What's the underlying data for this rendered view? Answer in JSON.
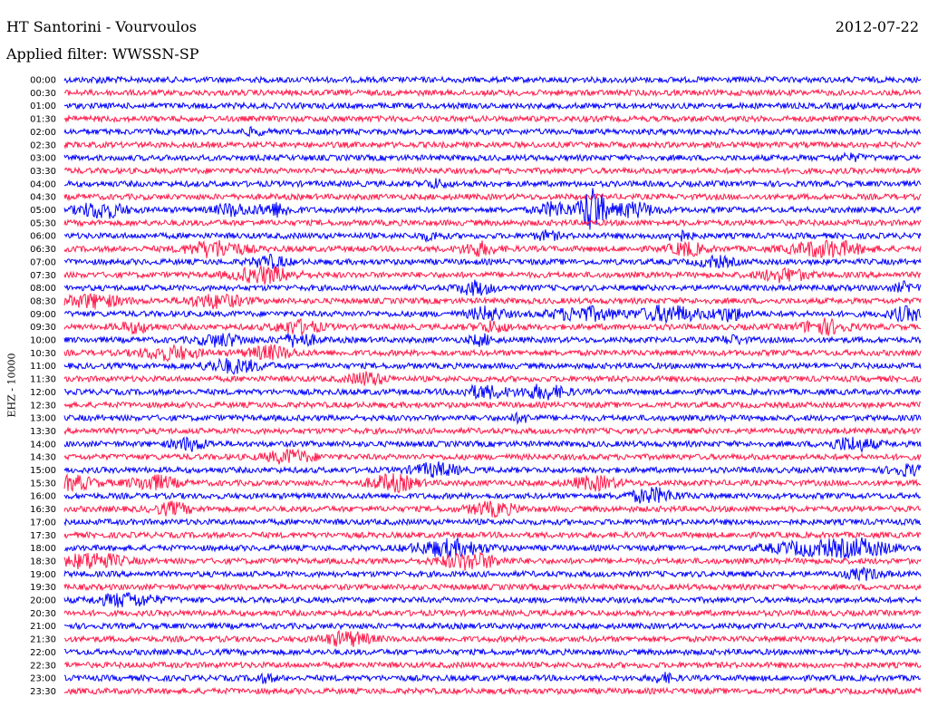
{
  "header": {
    "station": "HT Santorini - Vourvoulos",
    "date": "2012-07-22",
    "filter": "Applied filter: WWSSN-SP",
    "channel_label": "EHZ - 10000"
  },
  "colors": {
    "even_row": "#0000ff",
    "odd_row": "#ff1a4a"
  },
  "chart_data": {
    "type": "line",
    "title": "HT Santorini - Vourvoulos",
    "ylabel": "EHZ - 10000",
    "rows": [
      "00:00",
      "00:30",
      "01:00",
      "01:30",
      "02:00",
      "02:30",
      "03:00",
      "03:30",
      "04:00",
      "04:30",
      "05:00",
      "05:30",
      "06:00",
      "06:30",
      "07:00",
      "07:30",
      "08:00",
      "08:30",
      "09:00",
      "09:30",
      "10:00",
      "10:30",
      "11:00",
      "11:30",
      "12:00",
      "12:30",
      "13:00",
      "13:30",
      "14:00",
      "14:30",
      "15:00",
      "15:30",
      "16:00",
      "16:30",
      "17:00",
      "17:30",
      "18:00",
      "18:30",
      "19:00",
      "19:30",
      "20:00",
      "20:30",
      "21:00",
      "21:30",
      "22:00",
      "22:30",
      "23:00",
      "23:30"
    ],
    "row_duration_min": 30,
    "events": [
      {
        "row": 0,
        "minute": 1.3,
        "amp": 0.5,
        "width": 0.4
      },
      {
        "row": 2,
        "minute": 27.5,
        "amp": 0.5,
        "width": 0.4
      },
      {
        "row": 4,
        "minute": 6.6,
        "amp": 0.8,
        "width": 0.4
      },
      {
        "row": 6,
        "minute": 27.5,
        "amp": 0.8,
        "width": 0.5
      },
      {
        "row": 8,
        "minute": 13,
        "amp": 1.2,
        "width": 0.4
      },
      {
        "row": 10,
        "minute": 1.3,
        "amp": 2.5,
        "width": 0.8
      },
      {
        "row": 10,
        "minute": 5.9,
        "amp": 1.8,
        "width": 0.6
      },
      {
        "row": 10,
        "minute": 7.4,
        "amp": 2.0,
        "width": 0.6
      },
      {
        "row": 10,
        "minute": 17.2,
        "amp": 2.2,
        "width": 0.6
      },
      {
        "row": 10,
        "minute": 19.9,
        "amp": 2.2,
        "width": 0.8
      },
      {
        "row": 10,
        "minute": 18.5,
        "amp": 8.0,
        "width": 0.4
      },
      {
        "row": 12,
        "minute": 12.8,
        "amp": 1.0,
        "width": 0.4
      },
      {
        "row": 12,
        "minute": 16.9,
        "amp": 1.2,
        "width": 0.4
      },
      {
        "row": 12,
        "minute": 21.5,
        "amp": 1.5,
        "width": 0.4
      },
      {
        "row": 13,
        "minute": 5.3,
        "amp": 2.5,
        "width": 1.0
      },
      {
        "row": 13,
        "minute": 14.5,
        "amp": 2.0,
        "width": 0.6
      },
      {
        "row": 13,
        "minute": 21.8,
        "amp": 2.0,
        "width": 0.6
      },
      {
        "row": 13,
        "minute": 26.7,
        "amp": 2.5,
        "width": 1.2
      },
      {
        "row": 14,
        "minute": 7.2,
        "amp": 1.8,
        "width": 0.6
      },
      {
        "row": 14,
        "minute": 22.8,
        "amp": 1.5,
        "width": 0.6
      },
      {
        "row": 15,
        "minute": 7.0,
        "amp": 2.5,
        "width": 1.0
      },
      {
        "row": 15,
        "minute": 25.2,
        "amp": 2.0,
        "width": 0.8
      },
      {
        "row": 16,
        "minute": 14.4,
        "amp": 2.0,
        "width": 0.6
      },
      {
        "row": 16,
        "minute": 29.5,
        "amp": 1.5,
        "width": 0.4
      },
      {
        "row": 17,
        "minute": 1.0,
        "amp": 2.0,
        "width": 1.0
      },
      {
        "row": 17,
        "minute": 5.3,
        "amp": 2.0,
        "width": 1.0
      },
      {
        "row": 18,
        "minute": 14.8,
        "amp": 2.0,
        "width": 0.6
      },
      {
        "row": 18,
        "minute": 18.2,
        "amp": 2.0,
        "width": 1.2
      },
      {
        "row": 18,
        "minute": 21.2,
        "amp": 2.5,
        "width": 1.0
      },
      {
        "row": 18,
        "minute": 23.3,
        "amp": 2.0,
        "width": 0.6
      },
      {
        "row": 18,
        "minute": 29.5,
        "amp": 2.0,
        "width": 0.6
      },
      {
        "row": 19,
        "minute": 2.5,
        "amp": 1.5,
        "width": 0.6
      },
      {
        "row": 19,
        "minute": 8.2,
        "amp": 2.0,
        "width": 0.8
      },
      {
        "row": 19,
        "minute": 15.0,
        "amp": 1.5,
        "width": 0.6
      },
      {
        "row": 19,
        "minute": 26.6,
        "amp": 2.2,
        "width": 0.8
      },
      {
        "row": 20,
        "minute": 5.5,
        "amp": 1.8,
        "width": 0.8
      },
      {
        "row": 20,
        "minute": 8.2,
        "amp": 2.0,
        "width": 0.6
      },
      {
        "row": 20,
        "minute": 14.6,
        "amp": 1.5,
        "width": 0.4
      },
      {
        "row": 20,
        "minute": 23.4,
        "amp": 1.2,
        "width": 0.4
      },
      {
        "row": 21,
        "minute": 3.7,
        "amp": 2.0,
        "width": 1.0
      },
      {
        "row": 21,
        "minute": 7.2,
        "amp": 2.0,
        "width": 0.8
      },
      {
        "row": 22,
        "minute": 5.9,
        "amp": 2.0,
        "width": 1.0
      },
      {
        "row": 23,
        "minute": 10.6,
        "amp": 2.0,
        "width": 0.6
      },
      {
        "row": 24,
        "minute": 14.7,
        "amp": 1.8,
        "width": 0.8
      },
      {
        "row": 24,
        "minute": 16.8,
        "amp": 2.0,
        "width": 0.8
      },
      {
        "row": 26,
        "minute": 16.0,
        "amp": 1.0,
        "width": 0.4
      },
      {
        "row": 28,
        "minute": 4.4,
        "amp": 1.8,
        "width": 0.6
      },
      {
        "row": 28,
        "minute": 27.6,
        "amp": 2.0,
        "width": 0.8
      },
      {
        "row": 29,
        "minute": 7.9,
        "amp": 2.0,
        "width": 0.8
      },
      {
        "row": 30,
        "minute": 13.0,
        "amp": 2.0,
        "width": 0.8
      },
      {
        "row": 30,
        "minute": 29.5,
        "amp": 1.5,
        "width": 0.6
      },
      {
        "row": 31,
        "minute": 0.3,
        "amp": 2.0,
        "width": 0.8
      },
      {
        "row": 31,
        "minute": 3.1,
        "amp": 2.2,
        "width": 0.8
      },
      {
        "row": 31,
        "minute": 11.5,
        "amp": 2.5,
        "width": 0.8
      },
      {
        "row": 31,
        "minute": 18.6,
        "amp": 2.0,
        "width": 0.8
      },
      {
        "row": 32,
        "minute": 20.6,
        "amp": 2.2,
        "width": 0.8
      },
      {
        "row": 33,
        "minute": 3.8,
        "amp": 1.8,
        "width": 0.6
      },
      {
        "row": 33,
        "minute": 15.0,
        "amp": 2.0,
        "width": 0.8
      },
      {
        "row": 36,
        "minute": 13.5,
        "amp": 2.5,
        "width": 1.2
      },
      {
        "row": 36,
        "minute": 26.2,
        "amp": 2.0,
        "width": 1.5
      },
      {
        "row": 36,
        "minute": 28.0,
        "amp": 2.2,
        "width": 1.0
      },
      {
        "row": 37,
        "minute": 1.0,
        "amp": 2.5,
        "width": 1.0
      },
      {
        "row": 37,
        "minute": 14.2,
        "amp": 2.5,
        "width": 1.0
      },
      {
        "row": 38,
        "minute": 28.0,
        "amp": 1.5,
        "width": 0.6
      },
      {
        "row": 40,
        "minute": 2.2,
        "amp": 2.0,
        "width": 1.0
      },
      {
        "row": 43,
        "minute": 9.9,
        "amp": 2.2,
        "width": 0.8
      },
      {
        "row": 46,
        "minute": 7.0,
        "amp": 1.0,
        "width": 0.4
      },
      {
        "row": 46,
        "minute": 21.0,
        "amp": 1.2,
        "width": 0.4
      }
    ]
  }
}
